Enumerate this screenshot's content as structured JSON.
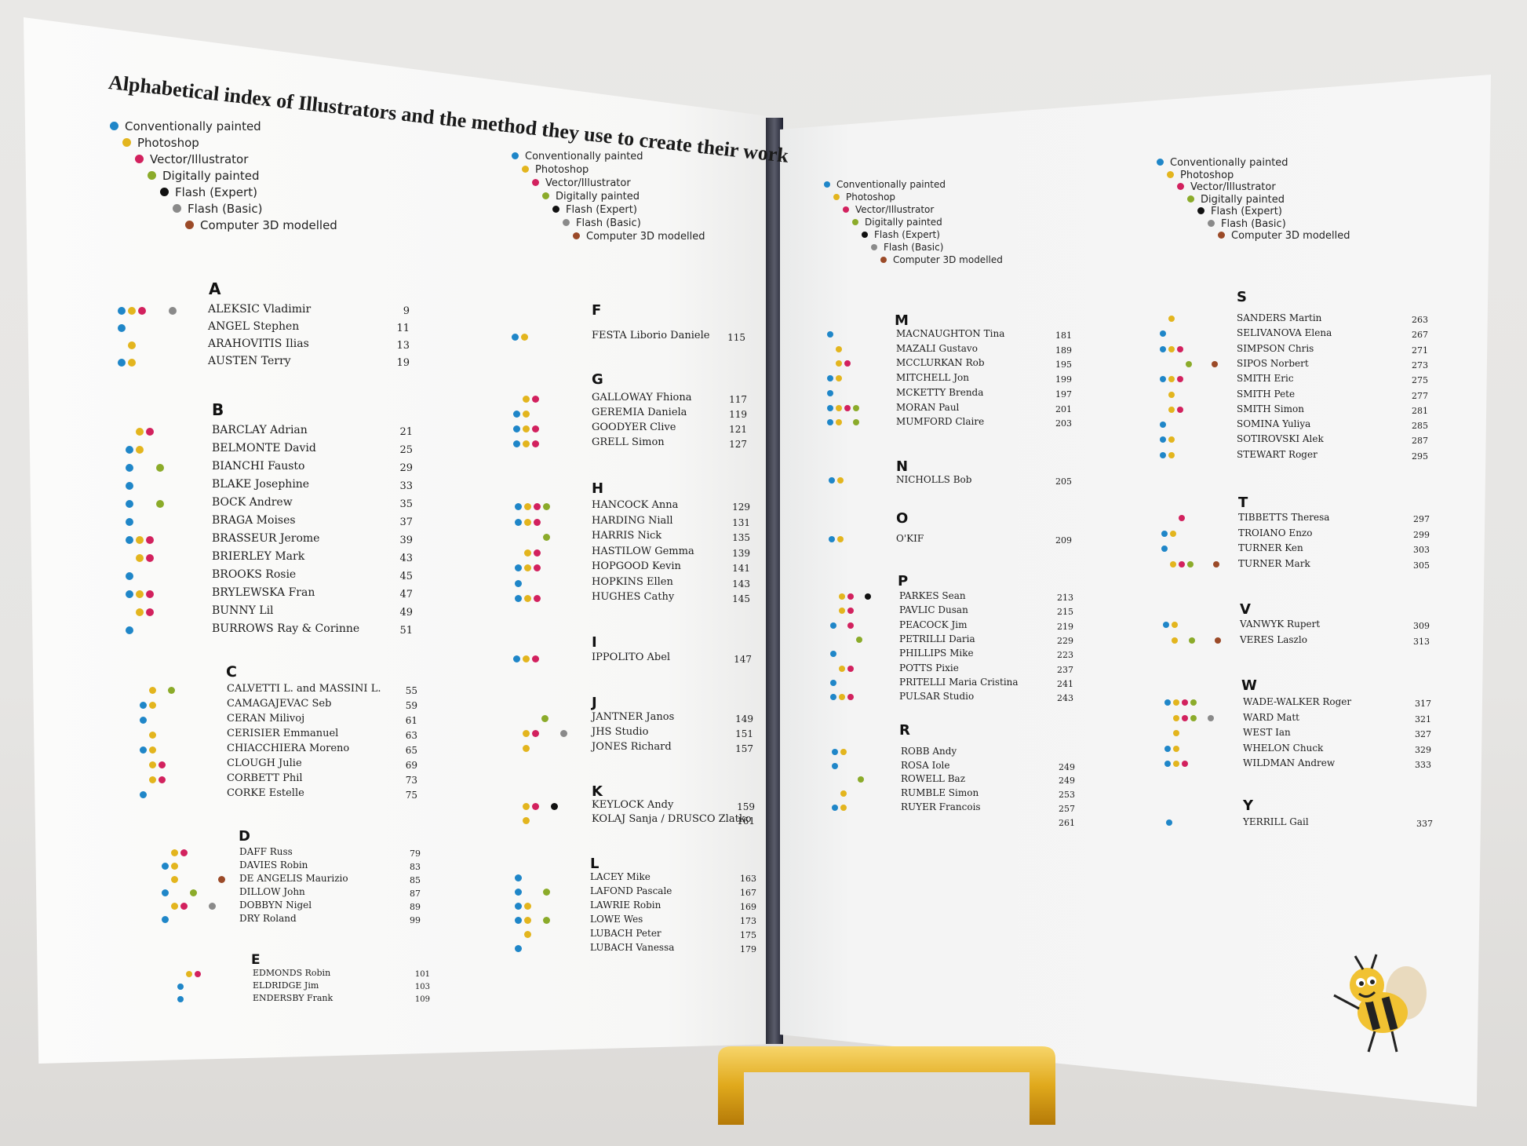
{
  "book": {
    "title": "Alphabetical index of Illustrators and the method they use to create their work"
  },
  "legend": [
    {
      "label": "Conventionally painted",
      "color": "#1f86c8"
    },
    {
      "label": "Photoshop",
      "color": "#e3b51e"
    },
    {
      "label": "Vector/Illustrator",
      "color": "#d2215e"
    },
    {
      "label": "Digitally painted",
      "color": "#8bab2a"
    },
    {
      "label": "Flash (Expert)",
      "color": "#111111"
    },
    {
      "label": "Flash (Basic)",
      "color": "#8a8a8a"
    },
    {
      "label": "Computer 3D modelled",
      "color": "#9b4a28"
    }
  ],
  "method_colors": {
    "conventional": "#1f86c8",
    "photoshop": "#e3b51e",
    "vector": "#d2215e",
    "digital": "#8bab2a",
    "flash_expert": "#111111",
    "flash_basic": "#8a8a8a",
    "3d": "#9b4a28"
  },
  "sections": [
    {
      "letter": "A",
      "entries": [
        {
          "name": "ALEKSIC Vladimir",
          "page": "9",
          "dots": [
            "conventional",
            "photoshop",
            "vector",
            "",
            "flash_basic"
          ]
        },
        {
          "name": "ANGEL Stephen",
          "page": "11",
          "dots": [
            "conventional"
          ]
        },
        {
          "name": "ARAHOVITIS Ilias",
          "page": "13",
          "dots": [
            "photoshop"
          ]
        },
        {
          "name": "AUSTEN Terry",
          "page": "19",
          "dots": [
            "conventional",
            "photoshop"
          ]
        }
      ]
    },
    {
      "letter": "B",
      "entries": [
        {
          "name": "BARCLAY Adrian",
          "page": "21",
          "dots": [
            "",
            "photoshop",
            "vector"
          ]
        },
        {
          "name": "BELMONTE David",
          "page": "25",
          "dots": [
            "conventional",
            "photoshop"
          ]
        },
        {
          "name": "BIANCHI Fausto",
          "page": "29",
          "dots": [
            "conventional",
            "",
            "",
            "digital"
          ]
        },
        {
          "name": "BLAKE Josephine",
          "page": "33",
          "dots": [
            "conventional"
          ]
        },
        {
          "name": "BOCK Andrew",
          "page": "35",
          "dots": [
            "conventional",
            "",
            "",
            "digital"
          ]
        },
        {
          "name": "BRAGA Moises",
          "page": "37",
          "dots": [
            "conventional"
          ]
        },
        {
          "name": "BRASSEUR Jerome",
          "page": "39",
          "dots": [
            "conventional",
            "photoshop",
            "vector"
          ]
        },
        {
          "name": "BRIERLEY Mark",
          "page": "43",
          "dots": [
            "",
            "photoshop",
            "vector"
          ]
        },
        {
          "name": "BROOKS Rosie",
          "page": "45",
          "dots": [
            "conventional"
          ]
        },
        {
          "name": "BRYLEWSKA Fran",
          "page": "47",
          "dots": [
            "conventional",
            "photoshop",
            "vector"
          ]
        },
        {
          "name": "BUNNY Lil",
          "page": "49",
          "dots": [
            "",
            "photoshop",
            "vector"
          ]
        },
        {
          "name": "BURROWS Ray & Corinne",
          "page": "51",
          "dots": [
            "conventional"
          ]
        }
      ]
    },
    {
      "letter": "C",
      "entries": [
        {
          "name": "CALVETTI L. and MASSINI L.",
          "page": "55",
          "dots": [
            "",
            "photoshop",
            "",
            "digital"
          ]
        },
        {
          "name": "CAMAGAJEVAC Seb",
          "page": "59",
          "dots": [
            "conventional",
            "photoshop"
          ]
        },
        {
          "name": "CERAN Milivoj",
          "page": "61",
          "dots": [
            "conventional"
          ]
        },
        {
          "name": "CERISIER Emmanuel",
          "page": "63",
          "dots": [
            "",
            "photoshop"
          ]
        },
        {
          "name": "CHIACCHIERA Moreno",
          "page": "65",
          "dots": [
            "conventional",
            "photoshop"
          ]
        },
        {
          "name": "CLOUGH Julie",
          "page": "69",
          "dots": [
            "",
            "photoshop",
            "vector"
          ]
        },
        {
          "name": "CORBETT Phil",
          "page": "73",
          "dots": [
            "",
            "photoshop",
            "vector"
          ]
        },
        {
          "name": "CORKE Estelle",
          "page": "75",
          "dots": [
            "conventional"
          ]
        }
      ]
    },
    {
      "letter": "D",
      "entries": [
        {
          "name": "DAFF Russ",
          "page": "79",
          "dots": [
            "",
            "photoshop",
            "vector"
          ]
        },
        {
          "name": "DAVIES Robin",
          "page": "83",
          "dots": [
            "conventional",
            "photoshop"
          ]
        },
        {
          "name": "DE ANGELIS Maurizio",
          "page": "85",
          "dots": [
            "",
            "photoshop",
            "",
            "",
            "",
            "",
            "3d"
          ]
        },
        {
          "name": "DILLOW John",
          "page": "87",
          "dots": [
            "conventional",
            "",
            "",
            "digital"
          ]
        },
        {
          "name": "DOBBYN Nigel",
          "page": "89",
          "dots": [
            "",
            "photoshop",
            "vector",
            "",
            "",
            "flash_basic"
          ]
        },
        {
          "name": "DRY Roland",
          "page": "99",
          "dots": [
            "conventional"
          ]
        }
      ]
    },
    {
      "letter": "E",
      "entries": [
        {
          "name": "EDMONDS Robin",
          "page": "101",
          "dots": [
            "",
            "photoshop",
            "vector"
          ]
        },
        {
          "name": "ELDRIDGE Jim",
          "page": "103",
          "dots": [
            "conventional"
          ]
        },
        {
          "name": "ENDERSBY Frank",
          "page": "109",
          "dots": [
            "conventional"
          ]
        }
      ]
    },
    {
      "letter": "F",
      "entries": [
        {
          "name": "FESTA Liborio Daniele",
          "page": "115",
          "dots": [
            "conventional",
            "photoshop"
          ]
        }
      ]
    },
    {
      "letter": "G",
      "entries": [
        {
          "name": "GALLOWAY Fhiona",
          "page": "117",
          "dots": [
            "",
            "photoshop",
            "vector"
          ]
        },
        {
          "name": "GEREMIA Daniela",
          "page": "119",
          "dots": [
            "conventional",
            "photoshop"
          ]
        },
        {
          "name": "GOODYER Clive",
          "page": "121",
          "dots": [
            "conventional",
            "photoshop",
            "vector"
          ]
        },
        {
          "name": "GRELL Simon",
          "page": "127",
          "dots": [
            "conventional",
            "photoshop",
            "vector"
          ]
        }
      ]
    },
    {
      "letter": "H",
      "entries": [
        {
          "name": "HANCOCK Anna",
          "page": "129",
          "dots": [
            "conventional",
            "photoshop",
            "vector",
            "digital"
          ]
        },
        {
          "name": "HARDING Niall",
          "page": "131",
          "dots": [
            "conventional",
            "photoshop",
            "vector"
          ]
        },
        {
          "name": "HARRIS Nick",
          "page": "135",
          "dots": [
            "",
            "",
            "",
            "digital"
          ]
        },
        {
          "name": "HASTILOW Gemma",
          "page": "139",
          "dots": [
            "",
            "photoshop",
            "vector"
          ]
        },
        {
          "name": "HOPGOOD Kevin",
          "page": "141",
          "dots": [
            "conventional",
            "photoshop",
            "vector"
          ]
        },
        {
          "name": "HOPKINS Ellen",
          "page": "143",
          "dots": [
            "conventional"
          ]
        },
        {
          "name": "HUGHES Cathy",
          "page": "145",
          "dots": [
            "conventional",
            "photoshop",
            "vector"
          ]
        }
      ]
    },
    {
      "letter": "I",
      "entries": [
        {
          "name": "IPPOLITO Abel",
          "page": "147",
          "dots": [
            "conventional",
            "photoshop",
            "vector"
          ]
        }
      ]
    },
    {
      "letter": "J",
      "entries": [
        {
          "name": "JANTNER Janos",
          "page": "149",
          "dots": [
            "",
            "",
            "",
            "digital"
          ]
        },
        {
          "name": "JHS Studio",
          "page": "151",
          "dots": [
            "",
            "photoshop",
            "vector",
            "",
            "",
            "flash_basic"
          ]
        },
        {
          "name": "JONES Richard",
          "page": "157",
          "dots": [
            "",
            "photoshop"
          ]
        }
      ]
    },
    {
      "letter": "K",
      "entries": [
        {
          "name": "KEYLOCK Andy",
          "page": "159",
          "dots": [
            "",
            "photoshop",
            "vector",
            "",
            "flash_expert"
          ]
        },
        {
          "name": "KOLAJ Sanja / DRUSCO Zlatko",
          "page": "161",
          "dots": [
            "",
            "photoshop"
          ]
        }
      ]
    },
    {
      "letter": "L",
      "entries": [
        {
          "name": "LACEY Mike",
          "page": "163",
          "dots": [
            "conventional"
          ]
        },
        {
          "name": "LAFOND Pascale",
          "page": "167",
          "dots": [
            "conventional",
            "",
            "",
            "digital"
          ]
        },
        {
          "name": "LAWRIE Robin",
          "page": "169",
          "dots": [
            "conventional",
            "photoshop"
          ]
        },
        {
          "name": "LOWE Wes",
          "page": "173",
          "dots": [
            "conventional",
            "photoshop",
            "",
            "digital"
          ]
        },
        {
          "name": "LUBACH Peter",
          "page": "175",
          "dots": [
            "",
            "photoshop"
          ]
        },
        {
          "name": "LUBACH Vanessa",
          "page": "179",
          "dots": [
            "conventional"
          ]
        }
      ]
    },
    {
      "letter": "M",
      "entries": [
        {
          "name": "MACNAUGHTON Tina",
          "page": "181",
          "dots": [
            "conventional"
          ]
        },
        {
          "name": "MAZALI Gustavo",
          "page": "189",
          "dots": [
            "",
            "photoshop"
          ]
        },
        {
          "name": "MCCLURKAN Rob",
          "page": "195",
          "dots": [
            "",
            "photoshop",
            "vector"
          ]
        },
        {
          "name": "MITCHELL Jon",
          "page": "199",
          "dots": [
            "conventional",
            "photoshop"
          ]
        },
        {
          "name": "MCKETTY Brenda",
          "page": "197",
          "dots": [
            "conventional"
          ]
        },
        {
          "name": "MORAN Paul",
          "page": "201",
          "dots": [
            "conventional",
            "photoshop",
            "vector",
            "digital"
          ]
        },
        {
          "name": "MUMFORD Claire",
          "page": "203",
          "dots": [
            "conventional",
            "photoshop",
            "",
            "digital"
          ]
        }
      ]
    },
    {
      "letter": "N",
      "entries": [
        {
          "name": "NICHOLLS Bob",
          "page": "205",
          "dots": [
            "conventional",
            "photoshop"
          ]
        }
      ]
    },
    {
      "letter": "O",
      "entries": [
        {
          "name": "O'KIF",
          "page": "209",
          "dots": [
            "conventional",
            "photoshop"
          ]
        }
      ]
    },
    {
      "letter": "P",
      "entries": [
        {
          "name": "PARKES Sean",
          "page": "213",
          "dots": [
            "",
            "photoshop",
            "vector",
            "",
            "flash_expert"
          ]
        },
        {
          "name": "PAVLIC Dusan",
          "page": "215",
          "dots": [
            "",
            "photoshop",
            "vector"
          ]
        },
        {
          "name": "PEACOCK Jim",
          "page": "219",
          "dots": [
            "conventional",
            "",
            "vector"
          ]
        },
        {
          "name": "PETRILLI Daria",
          "page": "229",
          "dots": [
            "",
            "",
            "",
            "digital"
          ]
        },
        {
          "name": "PHILLIPS Mike",
          "page": "223",
          "dots": [
            "conventional"
          ]
        },
        {
          "name": "POTTS Pixie",
          "page": "237",
          "dots": [
            "",
            "photoshop",
            "vector"
          ]
        },
        {
          "name": "PRITELLI Maria Cristina",
          "page": "241",
          "dots": [
            "conventional"
          ]
        },
        {
          "name": "PULSAR Studio",
          "page": "243",
          "dots": [
            "conventional",
            "photoshop",
            "vector"
          ]
        }
      ]
    },
    {
      "letter": "R",
      "entries": [
        {
          "name": "ROBB Andy",
          "page": "",
          "dots": [
            "conventional",
            "photoshop"
          ]
        },
        {
          "name": "ROSA Iole",
          "page": "249",
          "dots": [
            "conventional"
          ]
        },
        {
          "name": "ROWELL Baz",
          "page": "249",
          "dots": [
            "",
            "",
            "",
            "digital"
          ]
        },
        {
          "name": "RUMBLE Simon",
          "page": "253",
          "dots": [
            "",
            "photoshop"
          ]
        },
        {
          "name": "RUYER Francois",
          "page": "257",
          "dots": [
            "conventional",
            "photoshop"
          ]
        },
        {
          "name": "",
          "page": "261",
          "dots": []
        }
      ]
    },
    {
      "letter": "S",
      "entries": [
        {
          "name": "SANDERS Martin",
          "page": "263",
          "dots": [
            "",
            "photoshop"
          ]
        },
        {
          "name": "SELIVANOVA Elena",
          "page": "267",
          "dots": [
            "conventional"
          ]
        },
        {
          "name": "SIMPSON Chris",
          "page": "271",
          "dots": [
            "conventional",
            "photoshop",
            "vector"
          ]
        },
        {
          "name": "SIPOS Norbert",
          "page": "273",
          "dots": [
            "",
            "",
            "",
            "digital",
            "",
            "",
            "3d"
          ]
        },
        {
          "name": "SMITH Eric",
          "page": "275",
          "dots": [
            "conventional",
            "photoshop",
            "vector"
          ]
        },
        {
          "name": "SMITH Pete",
          "page": "277",
          "dots": [
            "",
            "photoshop"
          ]
        },
        {
          "name": "SMITH Simon",
          "page": "281",
          "dots": [
            "",
            "photoshop",
            "vector"
          ]
        },
        {
          "name": "SOMINA Yuliya",
          "page": "285",
          "dots": [
            "conventional"
          ]
        },
        {
          "name": "SOTIROVSKI Alek",
          "page": "287",
          "dots": [
            "conventional",
            "photoshop"
          ]
        },
        {
          "name": "STEWART Roger",
          "page": "295",
          "dots": [
            "conventional",
            "photoshop"
          ]
        }
      ]
    },
    {
      "letter": "T",
      "entries": [
        {
          "name": "TIBBETTS Theresa",
          "page": "297",
          "dots": [
            "",
            "",
            "vector"
          ]
        },
        {
          "name": "TROIANO Enzo",
          "page": "299",
          "dots": [
            "conventional",
            "photoshop"
          ]
        },
        {
          "name": "TURNER Ken",
          "page": "303",
          "dots": [
            "conventional"
          ]
        },
        {
          "name": "TURNER Mark",
          "page": "305",
          "dots": [
            "",
            "photoshop",
            "vector",
            "digital",
            "",
            "",
            "3d"
          ]
        }
      ]
    },
    {
      "letter": "V",
      "entries": [
        {
          "name": "VANWYK Rupert",
          "page": "309",
          "dots": [
            "conventional",
            "photoshop"
          ]
        },
        {
          "name": "VERES Laszlo",
          "page": "313",
          "dots": [
            "",
            "photoshop",
            "",
            "digital",
            "",
            "",
            "3d"
          ]
        }
      ]
    },
    {
      "letter": "W",
      "entries": [
        {
          "name": "WADE-WALKER Roger",
          "page": "317",
          "dots": [
            "conventional",
            "photoshop",
            "vector",
            "digital"
          ]
        },
        {
          "name": "WARD Matt",
          "page": "321",
          "dots": [
            "",
            "photoshop",
            "vector",
            "digital",
            "",
            "flash_basic"
          ]
        },
        {
          "name": "WEST Ian",
          "page": "327",
          "dots": [
            "",
            "photoshop"
          ]
        },
        {
          "name": "WHELON Chuck",
          "page": "329",
          "dots": [
            "conventional",
            "photoshop"
          ]
        },
        {
          "name": "WILDMAN Andrew",
          "page": "333",
          "dots": [
            "conventional",
            "photoshop",
            "vector"
          ]
        }
      ]
    },
    {
      "letter": "Y",
      "entries": [
        {
          "name": "YERRILL Gail",
          "page": "337",
          "dots": [
            "conventional"
          ]
        }
      ]
    }
  ]
}
